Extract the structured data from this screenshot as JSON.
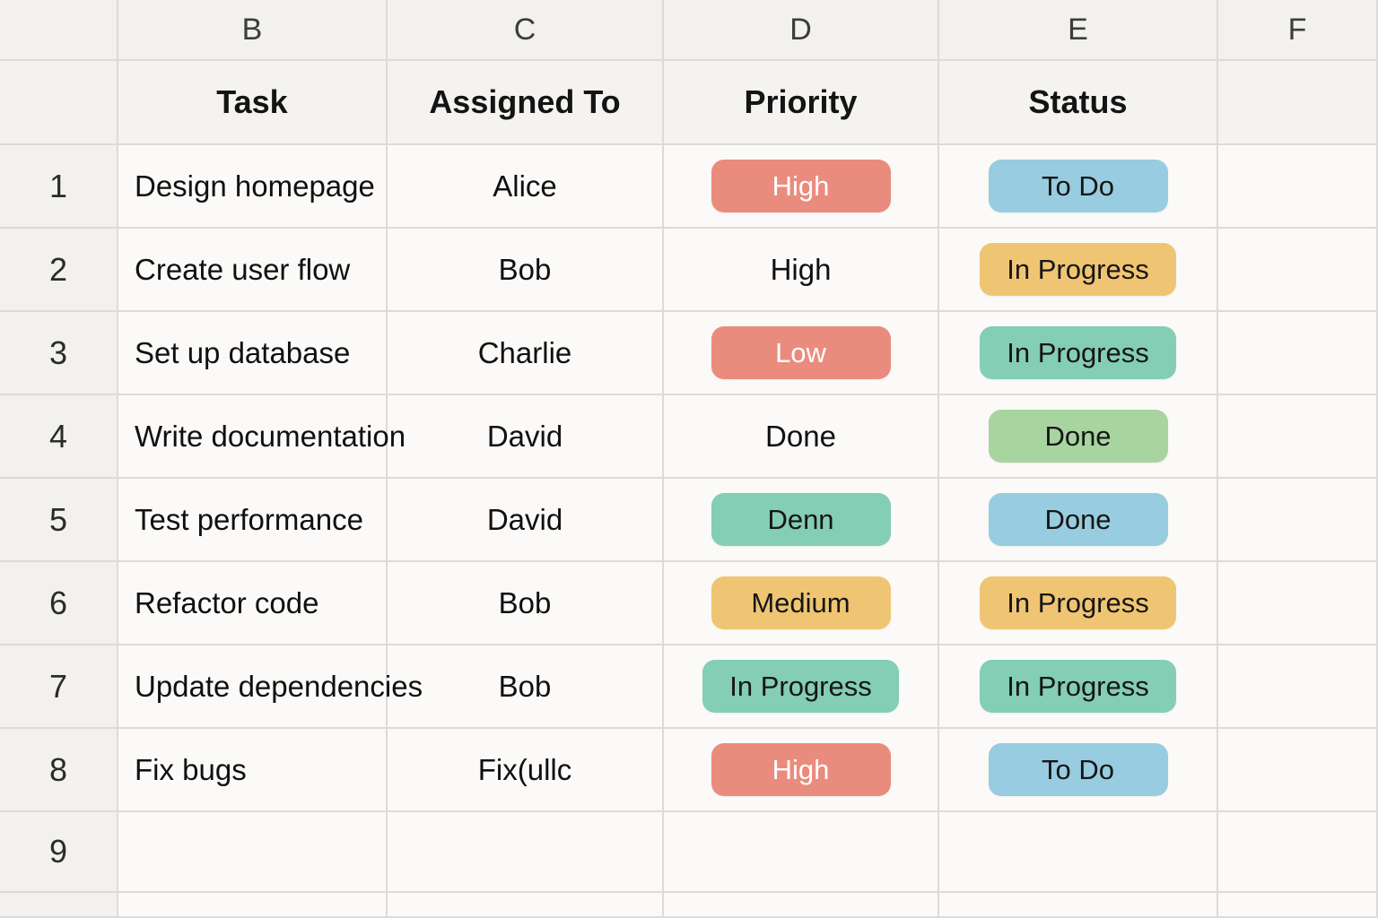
{
  "colors": {
    "priority_high_pill": "#ea8c7d",
    "priority_high_text": "#ffffff",
    "yellow_pill": "#efc573",
    "teal_pill": "#83ceb4",
    "green_pill": "#a8d4a0",
    "blue_pill": "#98cce0",
    "grid_line": "#dcdbd8",
    "header_bg": "#f2f1ee",
    "cell_bg": "#fbfaf8"
  },
  "spreadsheet": {
    "column_letters": [
      "B",
      "C",
      "D",
      "E",
      "F"
    ],
    "headers": {
      "task": "Task",
      "assigned": "Assigned To",
      "priority": "Priority",
      "status": "Status",
      "f": ""
    },
    "rows": [
      {
        "num": "1",
        "task": "Design homepage",
        "assigned": "Alice",
        "priority": {
          "text": "High",
          "variant": "red"
        },
        "status": {
          "text": "To Do",
          "variant": "blue"
        }
      },
      {
        "num": "2",
        "task": "Create user flow",
        "assigned": "Bob",
        "priority": {
          "text": "High",
          "variant": "none"
        },
        "status": {
          "text": "In Progress",
          "variant": "yellow"
        }
      },
      {
        "num": "3",
        "task": "Set up database",
        "assigned": "Charlie",
        "priority": {
          "text": "Low",
          "variant": "red"
        },
        "status": {
          "text": "In Progress",
          "variant": "teal"
        }
      },
      {
        "num": "4",
        "task": "Write documentation",
        "assigned": "David",
        "priority": {
          "text": "Done",
          "variant": "none"
        },
        "status": {
          "text": "Done",
          "variant": "green"
        }
      },
      {
        "num": "5",
        "task": "Test performance",
        "assigned": "David",
        "priority": {
          "text": "Denn",
          "variant": "teal"
        },
        "status": {
          "text": "Done",
          "variant": "blue"
        }
      },
      {
        "num": "6",
        "task": "Refactor code",
        "assigned": "Bob",
        "priority": {
          "text": "Medium",
          "variant": "yellow"
        },
        "status": {
          "text": "In Progress",
          "variant": "yellow"
        }
      },
      {
        "num": "7",
        "task": "Update dependencies",
        "assigned": "Bob",
        "priority": {
          "text": "In Progress",
          "variant": "teal"
        },
        "status": {
          "text": "In Progress",
          "variant": "teal"
        }
      },
      {
        "num": "8",
        "task": "Fix bugs",
        "assigned": "Fix(ullc",
        "priority": {
          "text": "High",
          "variant": "red"
        },
        "status": {
          "text": "To Do",
          "variant": "blue"
        }
      },
      {
        "num": "9",
        "task": "",
        "assigned": "",
        "priority": {
          "text": "",
          "variant": "none"
        },
        "status": {
          "text": "",
          "variant": "none"
        }
      }
    ]
  }
}
